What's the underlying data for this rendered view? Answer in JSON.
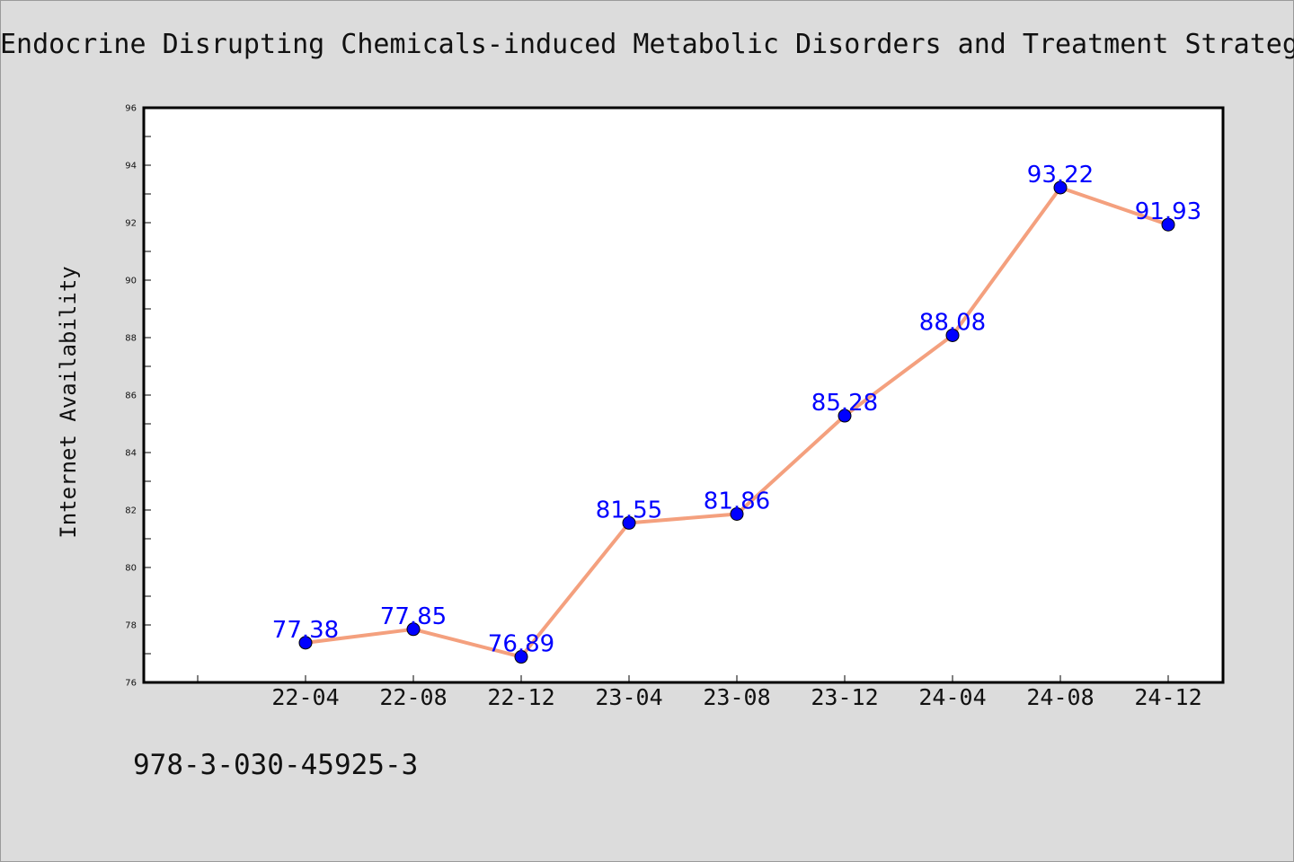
{
  "page": {
    "title": "Endocrine Disrupting Chemicals-induced Metabolic Disorders and Treatment Strategies",
    "isbn": "978-3-030-45925-3"
  },
  "chart_data": {
    "type": "line",
    "title": "Endocrine Disrupting Chemicals-induced Metabolic Disorders and Treatment Strategies",
    "xlabel": "",
    "ylabel": "Internet Availability",
    "categories": [
      "22-04",
      "22-08",
      "22-12",
      "23-04",
      "23-08",
      "23-12",
      "24-04",
      "24-08",
      "24-12"
    ],
    "series": [
      {
        "values": [
          77.38,
          77.85,
          76.89,
          81.55,
          81.86,
          85.28,
          88.08,
          93.22,
          91.93
        ],
        "data_labels": [
          "77.38",
          "77.85",
          "76.89",
          "81.55",
          "81.86",
          "85.28",
          "88.08",
          "93.22",
          "91.93"
        ]
      }
    ],
    "ylim": [
      76,
      96
    ],
    "yticks": [
      "76",
      "78",
      "80",
      "82",
      "84",
      "86",
      "88",
      "90",
      "92",
      "94",
      "96"
    ],
    "grid": false,
    "legend": "none",
    "colors": {
      "line": "#f4a07e",
      "marker": "#0000ff",
      "label": "#0000ff",
      "background": "#dcdcdc",
      "plot_background": "#ffffff"
    }
  }
}
